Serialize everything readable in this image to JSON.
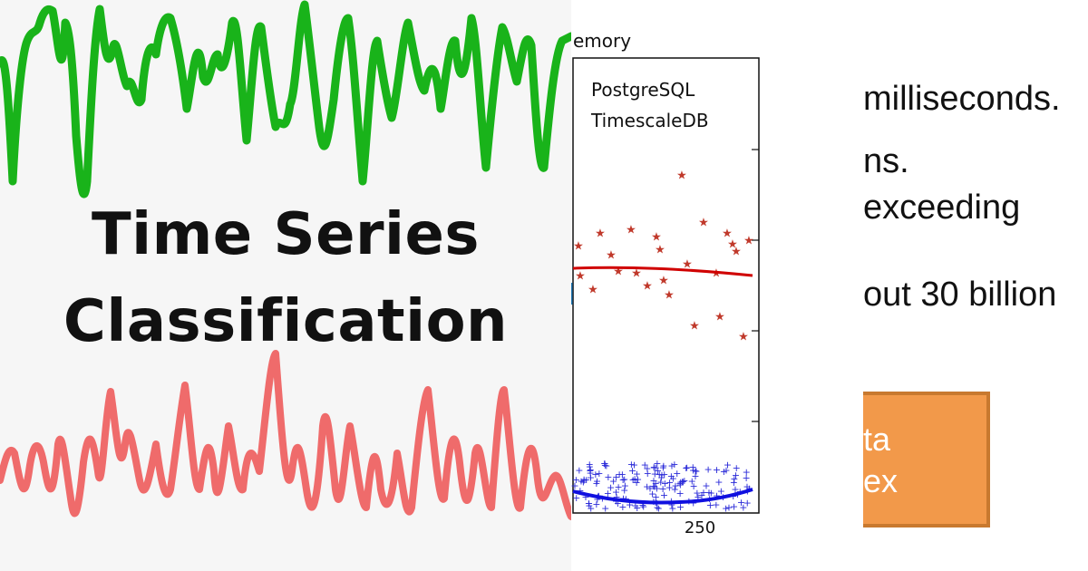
{
  "left_panel": {
    "title_line1": "Time Series",
    "title_line2": "Classification",
    "colors": {
      "top_wave": "#19b31a",
      "bottom_wave": "#ef6b6b",
      "background": "#f6f6f6"
    }
  },
  "chart_panel": {
    "chart_data": {
      "type": "scatter",
      "title_fragment": "emory",
      "series": [
        {
          "name": "PostgreSQL",
          "marker": "star",
          "color": "#c0392b"
        },
        {
          "name": "TimescaleDB",
          "marker": "plus",
          "color": "#2a2ad8"
        }
      ],
      "x_tick_labels": [
        "250"
      ]
    }
  },
  "text_panel": {
    "lines": [
      "milliseconds.",
      "ns.",
      "exceeding",
      "out 30 billion"
    ],
    "box_lines": [
      "ta",
      "ex"
    ],
    "box_color": "#f2994a"
  }
}
